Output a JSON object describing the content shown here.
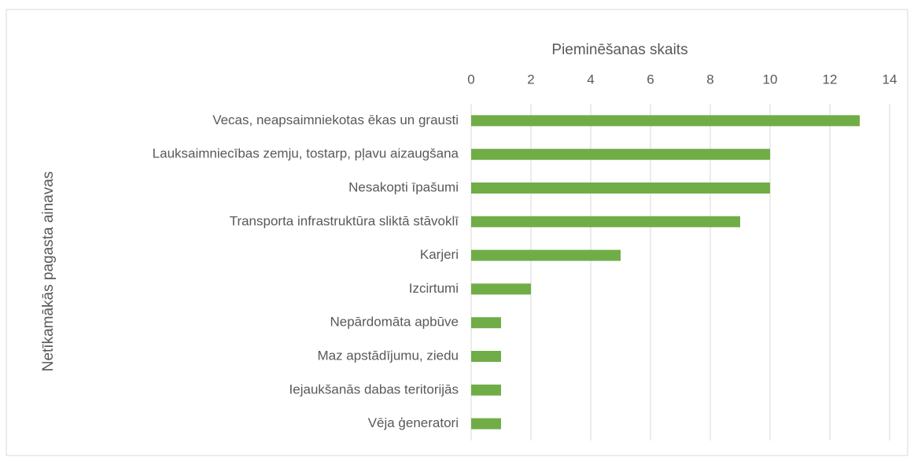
{
  "chart_data": {
    "type": "hbar",
    "x_label": "Pieminēšanas skaits",
    "y_label": "Netīkamākās pagasta ainavas",
    "categories": [
      "Vecas, neapsaimniekotas ēkas un grausti",
      "Lauksaimniecības zemju, tostarp, pļavu aizaugšana",
      "Nesakopti īpašumi",
      "Transporta infrastruktūra sliktā stāvoklī",
      "Karjeri",
      "Izcirtumi",
      "Nepārdomāta apbūve",
      "Maz apstādījumu, ziedu",
      "Iejaukšanās dabas teritorijās",
      "Vēja ģeneratori"
    ],
    "values": [
      13,
      10,
      10,
      9,
      5,
      2,
      1,
      1,
      1,
      1
    ],
    "color": "#70ad47",
    "xlim": [
      0,
      14
    ],
    "xticks": [
      0,
      2,
      4,
      6,
      8,
      10,
      12,
      14
    ],
    "grid": true
  }
}
